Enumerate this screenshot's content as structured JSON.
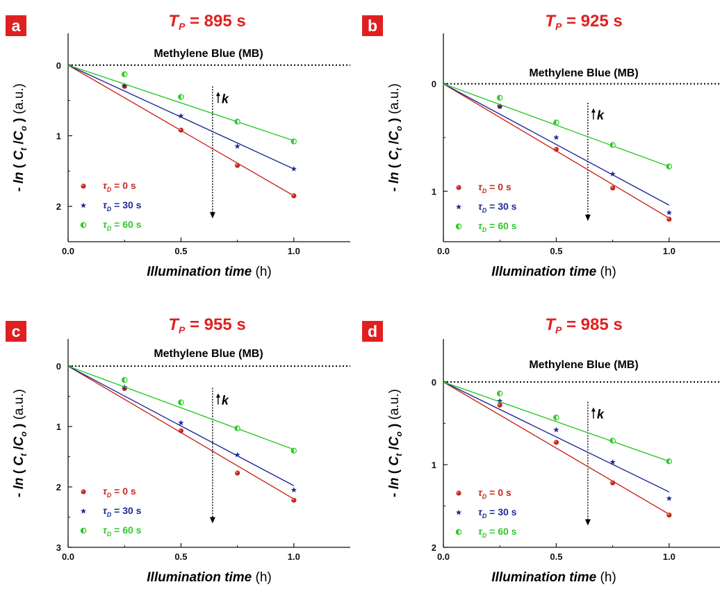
{
  "colors": {
    "tau0": "#c8281e",
    "tau30": "#1c2a96",
    "tau60": "#2ec82a",
    "title": "#e02020",
    "letter_bg": "#e02020",
    "axis": "#111111"
  },
  "chart_data": [
    {
      "type": "scatter",
      "panel": "a",
      "title_prefix": "T",
      "title_sub": "P",
      "title_value": "= 895 s",
      "annotation": "Methylene Blue (MB)",
      "k_label": "k",
      "xlabel": "Illumination time",
      "xlabel_unit": "(h)",
      "ylabel_pre": "- ",
      "ylabel_ln": "ln",
      "ylabel_open": " ( ",
      "ylabel_c1": "C",
      "ylabel_c1_sub": "t",
      "ylabel_slash": " /",
      "ylabel_c2": "C",
      "ylabel_c2_sub": "o",
      "ylabel_close": " )",
      "ylabel_unit": " (a.u.)",
      "xlim": [
        0,
        1.25
      ],
      "ylim": [
        2.5,
        -0.45
      ],
      "xticks": [
        0,
        0.5,
        1.0
      ],
      "xtick_labels": [
        "0.0",
        "0.5",
        "1.0"
      ],
      "yticks": [
        0,
        1,
        2
      ],
      "ytick_labels": [
        "0",
        "1",
        "2"
      ],
      "series": [
        {
          "name_prefix": "τ",
          "name_sub": "D",
          "name_value": "= 0 s",
          "marker": "circle",
          "x": [
            0.25,
            0.5,
            0.75,
            1.0
          ],
          "y": [
            0.3,
            0.92,
            1.42,
            1.85
          ],
          "fit": [
            0,
            1.85
          ]
        },
        {
          "name_prefix": "τ",
          "name_sub": "D",
          "name_value": "= 30 s",
          "marker": "star",
          "x": [
            0.25,
            0.5,
            0.75,
            1.0
          ],
          "y": [
            0.29,
            0.72,
            1.15,
            1.47
          ],
          "fit": [
            0,
            1.47
          ]
        },
        {
          "name_prefix": "τ",
          "name_sub": "D",
          "name_value": "= 60 s",
          "marker": "half",
          "x": [
            0.25,
            0.5,
            0.75,
            1.0
          ],
          "y": [
            0.13,
            0.45,
            0.8,
            1.08
          ],
          "fit": [
            0,
            1.07
          ]
        }
      ]
    },
    {
      "type": "scatter",
      "panel": "b",
      "title_prefix": "T",
      "title_sub": "P",
      "title_value": "= 925 s",
      "annotation": "Methylene Blue (MB)",
      "k_label": "k",
      "xlabel": "Illumination time",
      "xlabel_unit": "(h)",
      "ylabel_pre": "- ",
      "ylabel_ln": "ln",
      "ylabel_open": " ( ",
      "ylabel_c1": "C",
      "ylabel_c1_sub": "t",
      "ylabel_slash": " /",
      "ylabel_c2": "C",
      "ylabel_c2_sub": "o",
      "ylabel_close": " )",
      "ylabel_unit": " (a.u.)",
      "xlim": [
        0,
        1.25
      ],
      "ylim": [
        1.47,
        -0.47
      ],
      "xticks": [
        0,
        0.5,
        1.0
      ],
      "xtick_labels": [
        "0.0",
        "0.5",
        "1.0"
      ],
      "yticks": [
        0,
        1
      ],
      "ytick_labels": [
        "0",
        "1"
      ],
      "series": [
        {
          "name_prefix": "τ",
          "name_sub": "D",
          "name_value": "= 0 s",
          "marker": "circle",
          "x": [
            0.25,
            0.5,
            0.75,
            1.0
          ],
          "y": [
            0.21,
            0.61,
            0.97,
            1.26
          ],
          "fit": [
            0,
            1.25
          ]
        },
        {
          "name_prefix": "τ",
          "name_sub": "D",
          "name_value": "= 30 s",
          "marker": "star",
          "x": [
            0.25,
            0.5,
            0.75,
            1.0
          ],
          "y": [
            0.21,
            0.5,
            0.84,
            1.2
          ],
          "fit": [
            0,
            1.13
          ]
        },
        {
          "name_prefix": "τ",
          "name_sub": "D",
          "name_value": "= 60 s",
          "marker": "half",
          "x": [
            0.25,
            0.5,
            0.75,
            1.0
          ],
          "y": [
            0.13,
            0.36,
            0.57,
            0.77
          ],
          "fit": [
            0,
            0.77
          ]
        }
      ]
    },
    {
      "type": "scatter",
      "panel": "c",
      "title_prefix": "T",
      "title_sub": "P",
      "title_value": "= 955 s",
      "annotation": "Methylene Blue (MB)",
      "k_label": "k",
      "xlabel": "Illumination time",
      "xlabel_unit": "(h)",
      "ylabel_pre": "- ",
      "ylabel_ln": "ln",
      "ylabel_open": " ( ",
      "ylabel_c1": "C",
      "ylabel_c1_sub": "t",
      "ylabel_slash": " /",
      "ylabel_c2": "C",
      "ylabel_c2_sub": "o",
      "ylabel_close": " )",
      "ylabel_unit": " (a.u.)",
      "xlim": [
        0,
        1.25
      ],
      "ylim": [
        3.0,
        -0.45
      ],
      "xticks": [
        0,
        0.5,
        1.0
      ],
      "xtick_labels": [
        "0.0",
        "0.5",
        "1.0"
      ],
      "yticks": [
        0,
        1,
        2,
        3
      ],
      "ytick_labels": [
        "0",
        "1",
        "2",
        "3"
      ],
      "series": [
        {
          "name_prefix": "τ",
          "name_sub": "D",
          "name_value": "= 0 s",
          "marker": "circle",
          "x": [
            0.25,
            0.5,
            0.75,
            1.0
          ],
          "y": [
            0.37,
            1.07,
            1.77,
            2.22
          ],
          "fit": [
            0,
            2.2
          ]
        },
        {
          "name_prefix": "τ",
          "name_sub": "D",
          "name_value": "= 30 s",
          "marker": "star",
          "x": [
            0.25,
            0.5,
            0.75,
            1.0
          ],
          "y": [
            0.35,
            0.94,
            1.47,
            2.05
          ],
          "fit": [
            0,
            1.98
          ]
        },
        {
          "name_prefix": "τ",
          "name_sub": "D",
          "name_value": "= 60 s",
          "marker": "half",
          "x": [
            0.25,
            0.5,
            0.75,
            1.0
          ],
          "y": [
            0.23,
            0.6,
            1.03,
            1.4
          ],
          "fit": [
            0,
            1.38
          ]
        }
      ]
    },
    {
      "type": "scatter",
      "panel": "d",
      "title_prefix": "T",
      "title_sub": "P",
      "title_value": "= 985 s",
      "annotation": "Methylene Blue (MB)",
      "k_label": "k",
      "xlabel": "Illumination time",
      "xlabel_unit": "(h)",
      "ylabel_pre": "- ",
      "ylabel_ln": "ln",
      "ylabel_open": " ( ",
      "ylabel_c1": "C",
      "ylabel_c1_sub": "t",
      "ylabel_slash": " /",
      "ylabel_c2": "C",
      "ylabel_c2_sub": "o",
      "ylabel_close": " )",
      "ylabel_unit": " (a.u.)",
      "xlim": [
        0,
        1.25
      ],
      "ylim": [
        2.0,
        -0.52
      ],
      "xticks": [
        0,
        0.5,
        1.0
      ],
      "xtick_labels": [
        "0.0",
        "0.5",
        "1.0"
      ],
      "yticks": [
        0,
        1,
        2
      ],
      "ytick_labels": [
        "0",
        "1",
        "2"
      ],
      "series": [
        {
          "name_prefix": "τ",
          "name_sub": "D",
          "name_value": "= 0 s",
          "marker": "circle",
          "x": [
            0.25,
            0.5,
            0.75,
            1.0
          ],
          "y": [
            0.28,
            0.73,
            1.22,
            1.61
          ],
          "fit": [
            0,
            1.6
          ]
        },
        {
          "name_prefix": "τ",
          "name_sub": "D",
          "name_value": "= 30 s",
          "marker": "star",
          "x": [
            0.25,
            0.5,
            0.75,
            1.0
          ],
          "y": [
            0.23,
            0.58,
            0.97,
            1.41
          ],
          "fit": [
            0,
            1.33
          ]
        },
        {
          "name_prefix": "τ",
          "name_sub": "D",
          "name_value": "= 60 s",
          "marker": "half",
          "x": [
            0.25,
            0.5,
            0.75,
            1.0
          ],
          "y": [
            0.14,
            0.43,
            0.71,
            0.96
          ],
          "fit": [
            0,
            0.96
          ]
        }
      ]
    }
  ]
}
